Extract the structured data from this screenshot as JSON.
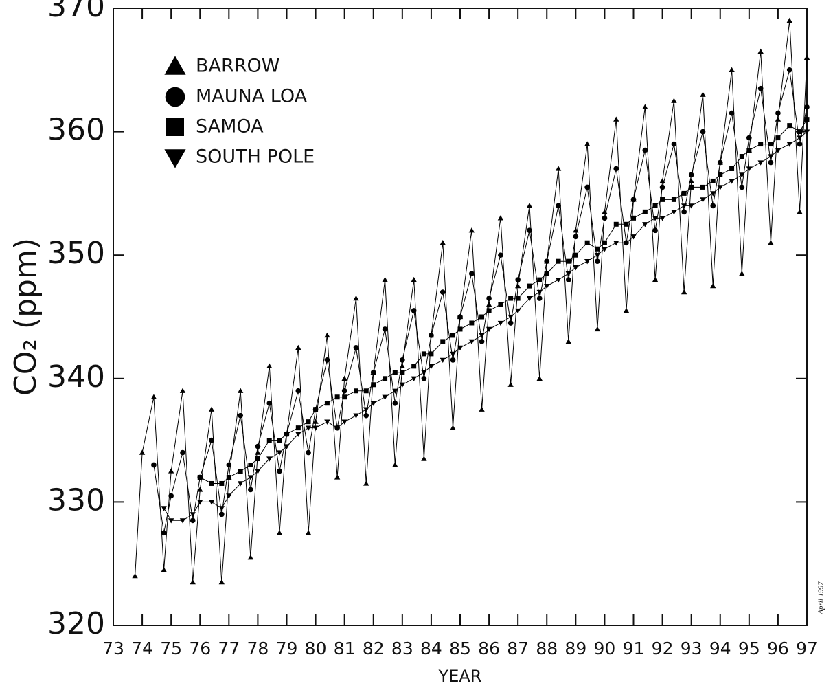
{
  "chart_data": {
    "type": "line",
    "y_label": "CO₂ (ppm)",
    "x_label": "YEAR",
    "annotation": "April 1997",
    "legend": "upper left",
    "grid": false,
    "xlim": [
      73,
      97
    ],
    "ylim": [
      320,
      370
    ],
    "xticks": [
      73,
      74,
      75,
      76,
      77,
      78,
      79,
      80,
      81,
      82,
      83,
      84,
      85,
      86,
      87,
      88,
      89,
      90,
      91,
      92,
      93,
      94,
      95,
      96,
      97
    ],
    "yticks": [
      320,
      330,
      340,
      350,
      360,
      370
    ],
    "x": [
      73.75,
      74,
      74.4,
      74.75,
      75,
      75.4,
      75.75,
      76,
      76.4,
      76.75,
      77,
      77.4,
      77.75,
      78,
      78.4,
      78.75,
      79,
      79.4,
      79.75,
      80,
      80.4,
      80.75,
      81,
      81.4,
      81.75,
      82,
      82.4,
      82.75,
      83,
      83.4,
      83.75,
      84,
      84.4,
      84.75,
      85,
      85.4,
      85.75,
      86,
      86.4,
      86.75,
      87,
      87.4,
      87.75,
      88,
      88.4,
      88.75,
      89,
      89.4,
      89.75,
      90,
      90.4,
      90.75,
      91,
      91.4,
      91.75,
      92,
      92.4,
      92.75,
      93,
      93.4,
      93.75,
      94,
      94.4,
      94.75,
      95,
      95.4,
      95.75,
      96,
      96.4,
      96.75,
      97
    ],
    "series": [
      {
        "name": "BARROW",
        "color": "#000000",
        "marker": "triangle-up",
        "values": [
          324,
          334,
          338.5,
          324.5,
          332.5,
          339,
          323.5,
          331,
          337.5,
          323.5,
          332,
          339,
          325.5,
          334,
          341,
          327.5,
          335.5,
          342.5,
          327.5,
          336.5,
          343.5,
          332,
          340,
          346.5,
          331.5,
          340.5,
          348,
          333,
          341,
          348,
          333.5,
          343.5,
          351,
          336,
          345,
          352,
          337.5,
          346,
          353,
          339.5,
          347.5,
          354,
          340,
          349.5,
          357,
          343,
          352,
          359,
          344,
          353.5,
          361,
          345.5,
          354.5,
          362,
          348,
          356,
          362.5,
          347,
          356,
          363,
          347.5,
          357.5,
          365,
          348.5,
          358.5,
          366.5,
          351,
          361,
          369,
          353.5,
          366
        ]
      },
      {
        "name": "MAUNA LOA",
        "color": "#000000",
        "marker": "circle",
        "values": [
          null,
          null,
          333,
          327.5,
          330.5,
          334,
          328.5,
          332,
          335,
          329,
          333,
          337,
          331,
          334.5,
          338,
          332.5,
          335.5,
          339,
          334,
          337.5,
          341.5,
          336,
          339,
          342.5,
          337,
          340.5,
          344,
          338,
          341.5,
          345.5,
          340,
          343.5,
          347,
          341.5,
          345,
          348.5,
          343,
          346.5,
          350,
          344.5,
          348,
          352,
          346.5,
          349.5,
          354,
          348,
          351.5,
          355.5,
          349.5,
          353,
          357,
          351,
          354.5,
          358.5,
          352,
          355.5,
          359,
          353.5,
          356.5,
          360,
          354,
          357.5,
          361.5,
          355.5,
          359.5,
          363.5,
          357.5,
          361.5,
          365,
          359,
          362
        ]
      },
      {
        "name": "SAMOA",
        "color": "#000000",
        "marker": "square",
        "values": [
          null,
          null,
          null,
          null,
          null,
          null,
          null,
          332,
          331.5,
          331.5,
          332,
          332.5,
          333,
          333.5,
          335,
          335,
          335.5,
          336,
          336.5,
          337.5,
          338,
          338.5,
          338.5,
          339,
          339,
          339.5,
          340,
          340.5,
          340.5,
          341,
          342,
          342,
          343,
          343.5,
          344,
          344.5,
          345,
          345.5,
          346,
          346.5,
          346.5,
          347.5,
          348,
          348.5,
          349.5,
          349.5,
          350,
          351,
          350.5,
          351,
          352.5,
          352.5,
          353,
          353.5,
          354,
          354.5,
          354.5,
          355,
          355.5,
          355.5,
          356,
          356.5,
          357,
          358,
          358.5,
          359,
          359,
          359.5,
          360.5,
          360,
          361
        ]
      },
      {
        "name": "SOUTH POLE",
        "color": "#000000",
        "marker": "triangle-down",
        "values": [
          null,
          null,
          null,
          329.5,
          328.5,
          328.5,
          329,
          330,
          330,
          329.5,
          330.5,
          331.5,
          332,
          332.5,
          333.5,
          334,
          334.5,
          335.5,
          336,
          336,
          336.5,
          336,
          336.5,
          337,
          337.5,
          338,
          338.5,
          339,
          339.5,
          340,
          340.5,
          341,
          341.5,
          342,
          342.5,
          343,
          343.5,
          344,
          344.5,
          345,
          345.5,
          346.5,
          347,
          347.5,
          348,
          348.5,
          349,
          349.5,
          350,
          350.5,
          351,
          351,
          351.5,
          352.5,
          353,
          353,
          353.5,
          354,
          354,
          354.5,
          355,
          355.5,
          356,
          356.5,
          357,
          357.5,
          358,
          358.5,
          359,
          359.5,
          360
        ]
      }
    ]
  }
}
